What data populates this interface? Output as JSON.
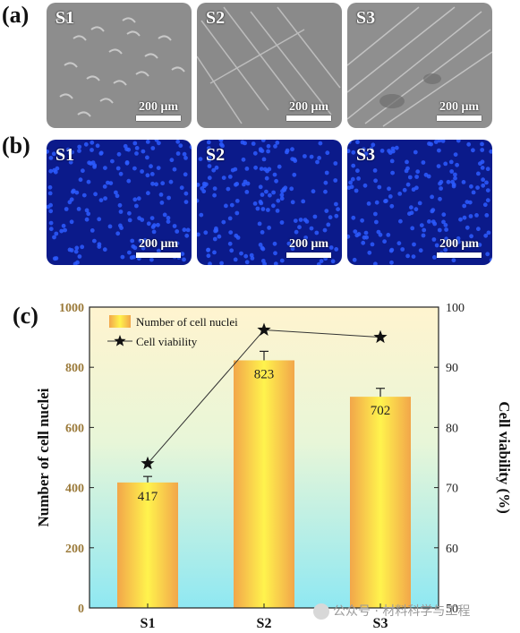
{
  "panels": {
    "a_label": "(a)",
    "b_label": "(b)",
    "c_label": "(c)",
    "samples": [
      "S1",
      "S2",
      "S3"
    ],
    "scalebar": "200 μm"
  },
  "colors": {
    "sem": "#8d8d8d",
    "fluorescence": "#0b1a8a",
    "nuclei": "#2d5cff",
    "bar_edge": "#f2a64a",
    "bar_center": "#fff34d",
    "bg_top": "#fff4cf",
    "bg_bottom": "#8fe8f2",
    "tick_left": "#9b7a3a"
  },
  "chart_data": {
    "type": "bar",
    "categories": [
      "S1",
      "S2",
      "S3"
    ],
    "series": [
      {
        "name": "Number of cell nuclei",
        "type": "bar",
        "axis": "left",
        "values": [
          417,
          823,
          702
        ],
        "errors": [
          20,
          30,
          28
        ]
      },
      {
        "name": "Cell viability",
        "type": "line",
        "axis": "right",
        "marker": "star",
        "values": [
          74,
          96.2,
          95
        ]
      }
    ],
    "data_labels": [
      "417",
      "823",
      "702"
    ],
    "ylabel_left": "Number of cell nuclei",
    "ylabel_right": "Cell viability (%)",
    "ylim_left": [
      0,
      1000
    ],
    "ylim_right": [
      50,
      100
    ],
    "yticks_left": [
      "0",
      "200",
      "400",
      "600",
      "800",
      "1000"
    ],
    "yticks_right": [
      "50",
      "60",
      "70",
      "80",
      "90",
      "100"
    ],
    "legend_position": "top-left",
    "grid": false
  },
  "watermark": "公众号 · 材料科学与工程"
}
